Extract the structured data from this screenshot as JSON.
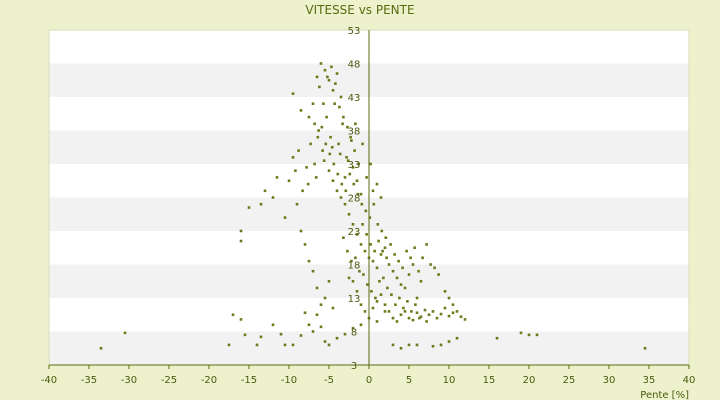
{
  "chart_data": {
    "type": "scatter",
    "title": "VITESSE vs PENTE",
    "xlabel": "Pente [%]",
    "ylabel": "",
    "xlim": [
      -40,
      40
    ],
    "ylim": [
      3,
      53
    ],
    "x_ticks": [
      -40,
      -35,
      -30,
      -25,
      -20,
      -15,
      -10,
      -5,
      0,
      5,
      10,
      15,
      20,
      25,
      30,
      35,
      40
    ],
    "y_ticks": [
      3,
      8,
      13,
      18,
      23,
      28,
      33,
      38,
      43,
      48,
      53
    ],
    "y_axis_position": "at x = 0",
    "grid": "horizontal alternating bands",
    "legend": "none",
    "colors": {
      "background": "#eef2cc",
      "plot_band_light": "#ffffff",
      "plot_band_dark": "#f2f2f2",
      "marker": "#6b7a1a",
      "axis": "#5a6a10"
    },
    "series": [
      {
        "points": [
          [
            -33.5,
            5.5
          ],
          [
            -30.5,
            7.8
          ],
          [
            -17.5,
            6
          ],
          [
            -17,
            10.5
          ],
          [
            -16,
            9.8
          ],
          [
            -15.5,
            7.5
          ],
          [
            -14,
            6
          ],
          [
            -13.5,
            7.2
          ],
          [
            -12,
            9
          ],
          [
            -11,
            7.6
          ],
          [
            -10.5,
            6
          ],
          [
            -9.5,
            6
          ],
          [
            -8.5,
            7.4
          ],
          [
            -8,
            10.8
          ],
          [
            -7.5,
            9
          ],
          [
            -7,
            8
          ],
          [
            -6.5,
            10.5
          ],
          [
            -6,
            8.7
          ],
          [
            -5.5,
            6.5
          ],
          [
            -5,
            6
          ],
          [
            -4,
            7
          ],
          [
            -3,
            7.6
          ],
          [
            -2,
            8.5
          ],
          [
            -1,
            9
          ],
          [
            0,
            10
          ],
          [
            1,
            9.5
          ],
          [
            2,
            11
          ],
          [
            3,
            6
          ],
          [
            4,
            5.5
          ],
          [
            5,
            6
          ],
          [
            6,
            6
          ],
          [
            8,
            5.8
          ],
          [
            9,
            6
          ],
          [
            10,
            6.5
          ],
          [
            11,
            7
          ],
          [
            16,
            7
          ],
          [
            19,
            7.8
          ],
          [
            20,
            7.5
          ],
          [
            21,
            7.5
          ],
          [
            34.5,
            5.5
          ],
          [
            -16,
            21.5
          ],
          [
            -16,
            23
          ],
          [
            -15,
            26.5
          ],
          [
            -13.5,
            27
          ],
          [
            -13,
            29
          ],
          [
            -12,
            28
          ],
          [
            -11.5,
            31
          ],
          [
            -10.5,
            25
          ],
          [
            -10,
            30.5
          ],
          [
            -9.5,
            34
          ],
          [
            -9,
            27
          ],
          [
            -8.5,
            23
          ],
          [
            -8,
            21
          ],
          [
            -7.5,
            18.5
          ],
          [
            -7,
            17
          ],
          [
            -6.5,
            14.5
          ],
          [
            -6,
            12
          ],
          [
            -5.5,
            13
          ],
          [
            -5,
            15.5
          ],
          [
            -4.5,
            11.5
          ],
          [
            -9.2,
            32
          ],
          [
            -8.8,
            35
          ],
          [
            -8.3,
            29
          ],
          [
            -7.8,
            32.5
          ],
          [
            -7.3,
            36
          ],
          [
            -6.8,
            33
          ],
          [
            -6.3,
            38
          ],
          [
            -5.8,
            35
          ],
          [
            -5.3,
            40
          ],
          [
            -4.8,
            37
          ],
          [
            -4.3,
            42
          ],
          [
            -3.8,
            36
          ],
          [
            -3.3,
            39
          ],
          [
            -2.8,
            34
          ],
          [
            -2.3,
            37
          ],
          [
            -1.8,
            35
          ],
          [
            -1.3,
            33
          ],
          [
            -0.8,
            36
          ],
          [
            -0.3,
            31
          ],
          [
            0.2,
            33
          ],
          [
            -9.5,
            43.5
          ],
          [
            -8.5,
            41
          ],
          [
            -7.5,
            40
          ],
          [
            -6.5,
            46
          ],
          [
            -6,
            48
          ],
          [
            -5.5,
            47
          ],
          [
            -5,
            45.5
          ],
          [
            -4.5,
            44
          ],
          [
            -4,
            46.5
          ],
          [
            -3.5,
            43
          ],
          [
            -6.2,
            44.5
          ],
          [
            -5.7,
            42
          ],
          [
            -5.2,
            46
          ],
          [
            -4.7,
            47.5
          ],
          [
            -4.2,
            45
          ],
          [
            -3.7,
            41.5
          ],
          [
            -3.2,
            40
          ],
          [
            -2.7,
            38.5
          ],
          [
            -2.2,
            36.5
          ],
          [
            -1.7,
            39
          ],
          [
            -7,
            42
          ],
          [
            -6.8,
            39
          ],
          [
            -6.4,
            37
          ],
          [
            -5.9,
            38.5
          ],
          [
            -5.4,
            36
          ],
          [
            -4.9,
            34.5
          ],
          [
            -4.4,
            33
          ],
          [
            -3.9,
            31.5
          ],
          [
            -3.4,
            30
          ],
          [
            -2.9,
            29
          ],
          [
            -2.4,
            31.5
          ],
          [
            -1.9,
            30
          ],
          [
            -1.4,
            28.5
          ],
          [
            -0.9,
            27
          ],
          [
            -0.4,
            26
          ],
          [
            0.1,
            25
          ],
          [
            0.6,
            27
          ],
          [
            1.1,
            24
          ],
          [
            1.6,
            23
          ],
          [
            2.1,
            22
          ],
          [
            -3,
            27
          ],
          [
            -2.5,
            25.5
          ],
          [
            -2,
            24
          ],
          [
            -1.5,
            22.5
          ],
          [
            -1,
            21
          ],
          [
            -0.5,
            20
          ],
          [
            0,
            19
          ],
          [
            0.5,
            18.5
          ],
          [
            1,
            17.5
          ],
          [
            1.5,
            19.5
          ],
          [
            2,
            20.5
          ],
          [
            2.5,
            18
          ],
          [
            3,
            17
          ],
          [
            3.5,
            16
          ],
          [
            4,
            15
          ],
          [
            4.5,
            14.5
          ],
          [
            5,
            16.5
          ],
          [
            5.5,
            18
          ],
          [
            6,
            13
          ],
          [
            6.5,
            15.5
          ],
          [
            -3.2,
            22
          ],
          [
            -2.7,
            20
          ],
          [
            -2.2,
            18.5
          ],
          [
            -1.7,
            19
          ],
          [
            -1.2,
            17
          ],
          [
            -0.7,
            16.5
          ],
          [
            -0.2,
            15
          ],
          [
            0.3,
            14
          ],
          [
            0.8,
            13
          ],
          [
            1.3,
            15.5
          ],
          [
            1.8,
            16
          ],
          [
            2.3,
            14.5
          ],
          [
            2.8,
            13.5
          ],
          [
            3.3,
            12
          ],
          [
            3.8,
            13
          ],
          [
            4.3,
            11.5
          ],
          [
            4.8,
            12.5
          ],
          [
            5.3,
            11
          ],
          [
            5.8,
            12
          ],
          [
            6.3,
            10
          ],
          [
            3,
            10
          ],
          [
            3.5,
            9.5
          ],
          [
            4,
            10.5
          ],
          [
            4.5,
            11
          ],
          [
            5,
            10
          ],
          [
            5.5,
            9.7
          ],
          [
            6,
            10.8
          ],
          [
            6.5,
            10.2
          ],
          [
            7,
            11.2
          ],
          [
            7.5,
            10.5
          ],
          [
            8,
            11
          ],
          [
            8.5,
            10
          ],
          [
            9,
            10.6
          ],
          [
            9.5,
            11.5
          ],
          [
            10,
            10.3
          ],
          [
            10.5,
            10.8
          ],
          [
            11,
            11
          ],
          [
            11.5,
            10.2
          ],
          [
            12,
            9.8
          ],
          [
            7.2,
            9.5
          ],
          [
            -1,
            12
          ],
          [
            -0.5,
            11
          ],
          [
            0.5,
            11.5
          ],
          [
            1,
            12.5
          ],
          [
            1.5,
            13.5
          ],
          [
            2,
            12
          ],
          [
            2.5,
            11
          ],
          [
            -1.5,
            14
          ],
          [
            -2,
            15.5
          ],
          [
            -2.5,
            16
          ],
          [
            -0.8,
            24
          ],
          [
            -0.3,
            22.5
          ],
          [
            0.2,
            21
          ],
          [
            0.7,
            20
          ],
          [
            1.2,
            21.5
          ],
          [
            1.7,
            20
          ],
          [
            2.2,
            19
          ],
          [
            2.7,
            21
          ],
          [
            3.2,
            19.5
          ],
          [
            3.7,
            18.5
          ],
          [
            -4,
            29
          ],
          [
            -3.5,
            28
          ],
          [
            -3,
            31
          ],
          [
            -1.5,
            30.5
          ],
          [
            -1,
            28.5
          ],
          [
            0.5,
            29
          ],
          [
            1,
            30
          ],
          [
            1.5,
            28
          ],
          [
            -4.5,
            30.5
          ],
          [
            -5,
            32
          ],
          [
            4.2,
            17.5
          ],
          [
            4.7,
            20
          ],
          [
            5.2,
            19
          ],
          [
            5.7,
            20.5
          ],
          [
            6.2,
            17
          ],
          [
            6.7,
            19
          ],
          [
            7.2,
            21
          ],
          [
            7.7,
            18
          ],
          [
            8.2,
            17.5
          ],
          [
            8.7,
            16.5
          ],
          [
            9.5,
            14
          ],
          [
            10,
            13
          ],
          [
            10.5,
            12
          ],
          [
            -2,
            32.5
          ],
          [
            -2.6,
            33.5
          ],
          [
            -3.6,
            34.5
          ],
          [
            -4.6,
            35.5
          ],
          [
            -5.6,
            33.5
          ],
          [
            -6.6,
            31
          ],
          [
            -7.6,
            30
          ]
        ]
      }
    ]
  }
}
